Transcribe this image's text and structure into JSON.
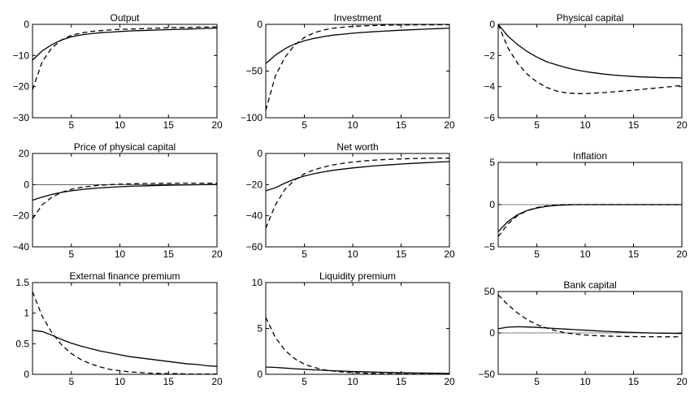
{
  "chart_data": [
    {
      "type": "line",
      "title": "Output",
      "xlim": [
        1,
        20
      ],
      "ylim": [
        -30,
        0
      ],
      "xticks": [
        5,
        10,
        15,
        20
      ],
      "yticks": [
        -30,
        -20,
        -10,
        0
      ],
      "zero_line": false,
      "x": [
        1,
        2,
        3,
        4,
        5,
        6,
        7,
        8,
        9,
        10,
        11,
        12,
        13,
        14,
        15,
        16,
        17,
        18,
        19,
        20
      ],
      "series": [
        {
          "style": "solid",
          "values": [
            -11.5,
            -8.5,
            -6.5,
            -5,
            -4,
            -3.4,
            -3,
            -2.7,
            -2.5,
            -2.3,
            -2.1,
            -2,
            -1.9,
            -1.8,
            -1.7,
            -1.6,
            -1.5,
            -1.4,
            -1.3,
            -1.2
          ]
        },
        {
          "style": "dashed",
          "values": [
            -21,
            -12,
            -7.5,
            -5,
            -3.5,
            -2.8,
            -2.3,
            -2,
            -1.8,
            -1.6,
            -1.5,
            -1.4,
            -1.3,
            -1.2,
            -1.1,
            -1,
            -1,
            -0.9,
            -0.9,
            -0.8
          ]
        }
      ]
    },
    {
      "type": "line",
      "title": "Investment",
      "xlim": [
        1,
        20
      ],
      "ylim": [
        -100,
        0
      ],
      "xticks": [
        5,
        10,
        15,
        20
      ],
      "yticks": [
        -100,
        -50,
        0
      ],
      "zero_line": false,
      "x": [
        1,
        2,
        3,
        4,
        5,
        6,
        7,
        8,
        9,
        10,
        11,
        12,
        13,
        14,
        15,
        16,
        17,
        18,
        19,
        20
      ],
      "series": [
        {
          "style": "solid",
          "values": [
            -42,
            -33,
            -26,
            -21,
            -17.5,
            -15,
            -13,
            -11.5,
            -10.5,
            -9.5,
            -8.7,
            -8,
            -7.4,
            -6.8,
            -6.3,
            -5.8,
            -5.3,
            -4.9,
            -4.5,
            -4
          ]
        },
        {
          "style": "dashed",
          "values": [
            -92,
            -55,
            -35,
            -22,
            -14,
            -9,
            -6,
            -4,
            -3,
            -2.2,
            -1.7,
            -1.3,
            -1,
            -0.8,
            -0.7,
            -0.6,
            -0.5,
            -0.5,
            -0.4,
            -0.4
          ]
        }
      ]
    },
    {
      "type": "line",
      "title": "Physical capital",
      "xlim": [
        1,
        20
      ],
      "ylim": [
        -6,
        0
      ],
      "xticks": [
        5,
        10,
        15,
        20
      ],
      "yticks": [
        -6,
        -4,
        -2,
        0
      ],
      "zero_line": false,
      "x": [
        1,
        2,
        3,
        4,
        5,
        6,
        7,
        8,
        9,
        10,
        11,
        12,
        13,
        14,
        15,
        16,
        17,
        18,
        19,
        20
      ],
      "series": [
        {
          "style": "solid",
          "values": [
            0,
            -0.75,
            -1.3,
            -1.75,
            -2.1,
            -2.4,
            -2.6,
            -2.78,
            -2.92,
            -3.03,
            -3.12,
            -3.2,
            -3.26,
            -3.31,
            -3.35,
            -3.38,
            -3.4,
            -3.42,
            -3.43,
            -3.44
          ]
        },
        {
          "style": "dashed",
          "values": [
            0,
            -1.5,
            -2.5,
            -3.2,
            -3.7,
            -4.05,
            -4.28,
            -4.4,
            -4.45,
            -4.45,
            -4.42,
            -4.38,
            -4.33,
            -4.28,
            -4.23,
            -4.17,
            -4.11,
            -4.05,
            -3.99,
            -3.92
          ]
        }
      ]
    },
    {
      "type": "line",
      "title": "Price of physical capital",
      "xlim": [
        1,
        20
      ],
      "ylim": [
        -40,
        20
      ],
      "xticks": [
        5,
        10,
        15,
        20
      ],
      "yticks": [
        -40,
        -20,
        0,
        20
      ],
      "zero_line": true,
      "x": [
        1,
        2,
        3,
        4,
        5,
        6,
        7,
        8,
        9,
        10,
        11,
        12,
        13,
        14,
        15,
        16,
        17,
        18,
        19,
        20
      ],
      "series": [
        {
          "style": "solid",
          "values": [
            -10,
            -8,
            -6.3,
            -5,
            -4,
            -3.2,
            -2.6,
            -2.1,
            -1.7,
            -1.4,
            -1.1,
            -0.9,
            -0.7,
            -0.5,
            -0.4,
            -0.3,
            -0.2,
            -0.1,
            0,
            0
          ]
        },
        {
          "style": "dashed",
          "values": [
            -22,
            -13,
            -8,
            -5,
            -3,
            -1.8,
            -1,
            -0.4,
            0,
            0.3,
            0.5,
            0.6,
            0.7,
            0.8,
            0.8,
            0.9,
            0.9,
            0.9,
            0.9,
            0.9
          ]
        }
      ]
    },
    {
      "type": "line",
      "title": "Net worth",
      "xlim": [
        1,
        20
      ],
      "ylim": [
        -60,
        0
      ],
      "xticks": [
        5,
        10,
        15,
        20
      ],
      "yticks": [
        -60,
        -40,
        -20,
        0
      ],
      "zero_line": false,
      "x": [
        1,
        2,
        3,
        4,
        5,
        6,
        7,
        8,
        9,
        10,
        11,
        12,
        13,
        14,
        15,
        16,
        17,
        18,
        19,
        20
      ],
      "series": [
        {
          "style": "solid",
          "values": [
            -24,
            -22,
            -19,
            -16.5,
            -14.5,
            -13,
            -11.8,
            -10.8,
            -10,
            -9.3,
            -8.7,
            -8.1,
            -7.6,
            -7.2,
            -6.8,
            -6.4,
            -6.1,
            -5.8,
            -5.5,
            -5.2
          ]
        },
        {
          "style": "dashed",
          "values": [
            -48,
            -33,
            -23,
            -17,
            -13,
            -10.5,
            -8.7,
            -7.3,
            -6.3,
            -5.5,
            -4.9,
            -4.4,
            -4,
            -3.7,
            -3.5,
            -3.3,
            -3.2,
            -3.1,
            -3,
            -3
          ]
        }
      ]
    },
    {
      "type": "line",
      "title": "Inflation",
      "xlim": [
        1,
        20
      ],
      "ylim": [
        -5,
        5
      ],
      "xticks": [
        5,
        10,
        15,
        20
      ],
      "yticks": [
        -5,
        0,
        5
      ],
      "zero_line": true,
      "x": [
        1,
        2,
        3,
        4,
        5,
        6,
        7,
        8,
        9,
        10,
        11,
        12,
        13,
        14,
        15,
        16,
        17,
        18,
        19,
        20
      ],
      "series": [
        {
          "style": "solid",
          "values": [
            -3.2,
            -2,
            -1.2,
            -0.7,
            -0.4,
            -0.2,
            -0.1,
            -0.05,
            0,
            0,
            0,
            0,
            0,
            0,
            0,
            0,
            0,
            0,
            0,
            0
          ]
        },
        {
          "style": "dashed",
          "values": [
            -3.8,
            -2.3,
            -1.3,
            -0.7,
            -0.35,
            -0.15,
            -0.05,
            0,
            0,
            0,
            0,
            0,
            0,
            0,
            0,
            0,
            0,
            0,
            0,
            0
          ]
        }
      ]
    },
    {
      "type": "line",
      "title": "External finance premium",
      "xlim": [
        1,
        20
      ],
      "ylim": [
        0,
        1.5
      ],
      "xticks": [
        5,
        10,
        15,
        20
      ],
      "yticks": [
        0,
        0.5,
        1,
        1.5
      ],
      "zero_line": false,
      "x": [
        1,
        2,
        3,
        4,
        5,
        6,
        7,
        8,
        9,
        10,
        11,
        12,
        13,
        14,
        15,
        16,
        17,
        18,
        19,
        20
      ],
      "series": [
        {
          "style": "solid",
          "values": [
            0.72,
            0.7,
            0.64,
            0.57,
            0.51,
            0.46,
            0.42,
            0.38,
            0.35,
            0.32,
            0.29,
            0.27,
            0.25,
            0.23,
            0.21,
            0.19,
            0.17,
            0.16,
            0.14,
            0.13
          ]
        },
        {
          "style": "dashed",
          "values": [
            1.35,
            0.95,
            0.68,
            0.48,
            0.34,
            0.24,
            0.17,
            0.12,
            0.08,
            0.06,
            0.04,
            0.03,
            0.02,
            0.015,
            0.01,
            0.01,
            0.005,
            0.005,
            0.005,
            0.005
          ]
        }
      ]
    },
    {
      "type": "line",
      "title": "Liquidity premium",
      "xlim": [
        1,
        20
      ],
      "ylim": [
        0,
        10
      ],
      "xticks": [
        5,
        10,
        15,
        20
      ],
      "yticks": [
        0,
        5,
        10
      ],
      "zero_line": false,
      "x": [
        1,
        2,
        3,
        4,
        5,
        6,
        7,
        8,
        9,
        10,
        11,
        12,
        13,
        14,
        15,
        16,
        17,
        18,
        19,
        20
      ],
      "series": [
        {
          "style": "solid",
          "values": [
            0.8,
            0.75,
            0.68,
            0.61,
            0.55,
            0.49,
            0.44,
            0.39,
            0.35,
            0.31,
            0.28,
            0.25,
            0.22,
            0.2,
            0.18,
            0.16,
            0.14,
            0.13,
            0.12,
            0.1
          ]
        },
        {
          "style": "dashed",
          "values": [
            6.2,
            4,
            2.6,
            1.7,
            1.1,
            0.75,
            0.5,
            0.35,
            0.25,
            0.18,
            0.13,
            0.1,
            0.07,
            0.05,
            0.04,
            0.03,
            0.02,
            0.02,
            0.01,
            0.01
          ]
        }
      ]
    },
    {
      "type": "line",
      "title": "Bank capital",
      "xlim": [
        1,
        20
      ],
      "ylim": [
        -50,
        50
      ],
      "xticks": [
        5,
        10,
        15,
        20
      ],
      "yticks": [
        -50,
        0,
        50
      ],
      "zero_line": true,
      "x": [
        1,
        2,
        3,
        4,
        5,
        6,
        7,
        8,
        9,
        10,
        11,
        12,
        13,
        14,
        15,
        16,
        17,
        18,
        19,
        20
      ],
      "series": [
        {
          "style": "solid",
          "values": [
            5,
            7,
            7.5,
            7.2,
            6.7,
            6,
            5.3,
            4.6,
            3.9,
            3.2,
            2.6,
            2,
            1.5,
            1,
            0.6,
            0.2,
            -0.1,
            -0.3,
            -0.5,
            -0.7
          ]
        },
        {
          "style": "dashed",
          "values": [
            46,
            34,
            24,
            16,
            10,
            6,
            2.5,
            0,
            -1.5,
            -2.5,
            -3.2,
            -3.7,
            -4,
            -4.2,
            -4.4,
            -4.5,
            -4.6,
            -4.7,
            -4.7,
            -4.8
          ]
        }
      ]
    }
  ]
}
